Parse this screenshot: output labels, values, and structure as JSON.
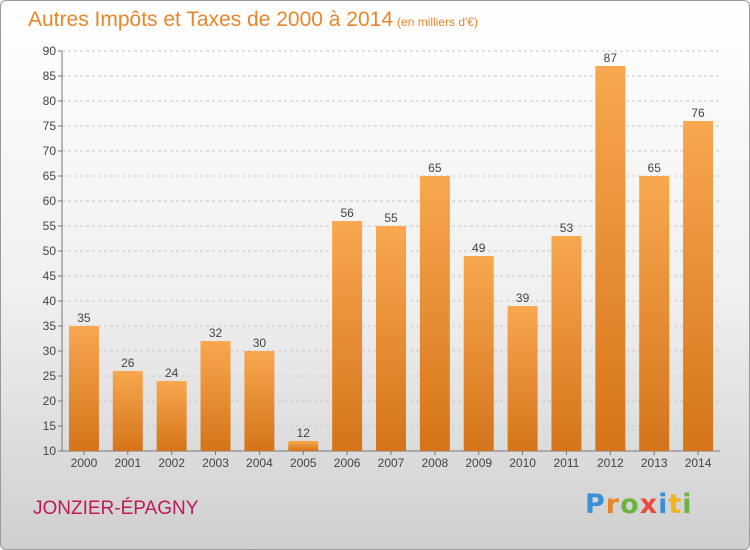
{
  "title": "Autres Impôts et Taxes de 2000 à 2014",
  "unit": "(en milliers d'€)",
  "commune": "JONZIER-ÉPAGNY",
  "logo": {
    "letters": [
      "P",
      "r",
      "o",
      "x",
      "i",
      "t",
      "i"
    ],
    "colors": [
      "#3a8fd8",
      "#e8862a",
      "#6cb33f",
      "#e94b3c",
      "#3a8fd8",
      "#f3b21b",
      "#6cb33f"
    ]
  },
  "colors": {
    "bar_light": "#f8a84f",
    "bar_dark": "#d5741a",
    "title": "#e8862a",
    "commune": "#c2185b"
  },
  "chart_data": {
    "type": "bar",
    "title": "Autres Impôts et Taxes de 2000 à 2014",
    "subtitle": "(en milliers d'€)",
    "categories": [
      "2000",
      "2001",
      "2002",
      "2003",
      "2004",
      "2005",
      "2006",
      "2007",
      "2008",
      "2009",
      "2010",
      "2011",
      "2012",
      "2013",
      "2014"
    ],
    "values": [
      35,
      26,
      24,
      32,
      30,
      12,
      56,
      55,
      65,
      49,
      39,
      53,
      87,
      65,
      76
    ],
    "ylim": [
      10,
      90
    ],
    "yticks": [
      10,
      15,
      20,
      25,
      30,
      35,
      40,
      45,
      50,
      55,
      60,
      65,
      70,
      75,
      80,
      85,
      90
    ],
    "grid": true,
    "data_labels": true
  }
}
